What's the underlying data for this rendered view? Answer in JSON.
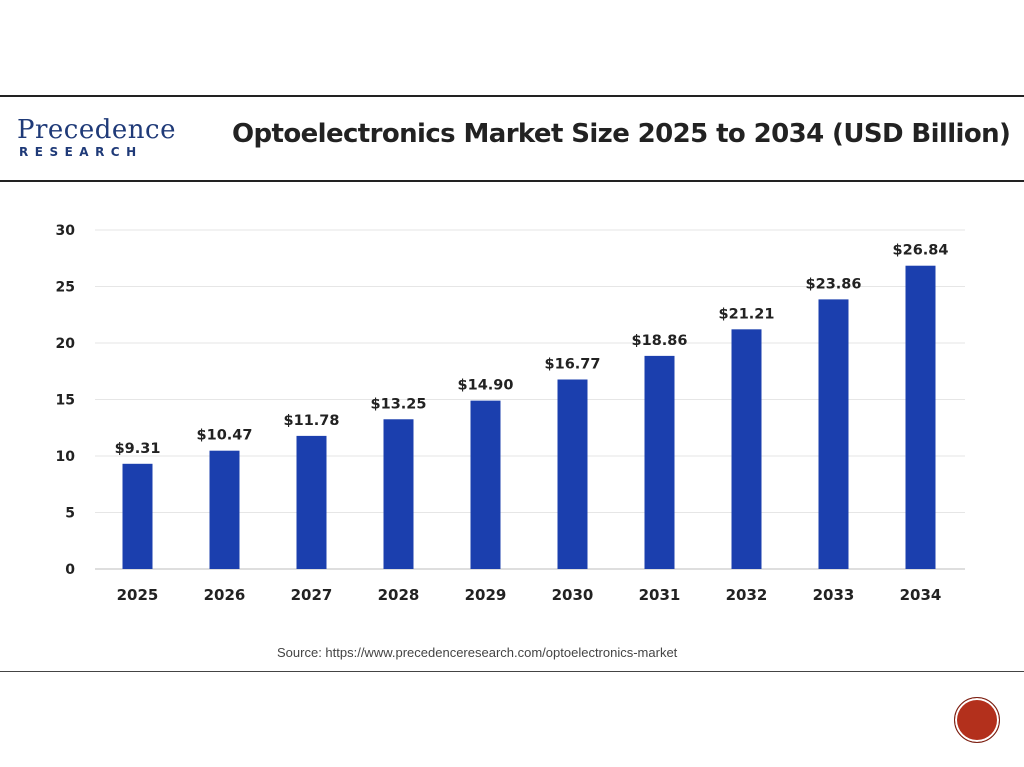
{
  "header": {
    "logo_line1": "Precedence",
    "logo_line2": "RESEARCH",
    "title": "Optoelectronics Market Size 2025 to 2034 (USD Billion)"
  },
  "source": "Source: https://www.precedenceresearch.com/optoelectronics-market",
  "page_badge": "",
  "colors": {
    "bar": "#1b3fae",
    "brand": "#1f3a78",
    "badge": "#b3301c"
  },
  "chart_data": {
    "type": "bar",
    "categories": [
      "2025",
      "2026",
      "2027",
      "2028",
      "2029",
      "2030",
      "2031",
      "2032",
      "2033",
      "2034"
    ],
    "values": [
      9.31,
      10.47,
      11.78,
      13.25,
      14.9,
      16.77,
      18.86,
      21.21,
      23.86,
      26.84
    ],
    "value_labels": [
      "$9.31",
      "$10.47",
      "$11.78",
      "$13.25",
      "$14.90",
      "$16.77",
      "$18.86",
      "$21.21",
      "$23.86",
      "$26.84"
    ],
    "yticks": [
      "0",
      "5",
      "10",
      "15",
      "20",
      "25",
      "30"
    ],
    "ylim": [
      0,
      30
    ],
    "grid": true,
    "title": "Optoelectronics Market Size 2025 to 2034 (USD Billion)",
    "xlabel": "",
    "ylabel": ""
  }
}
